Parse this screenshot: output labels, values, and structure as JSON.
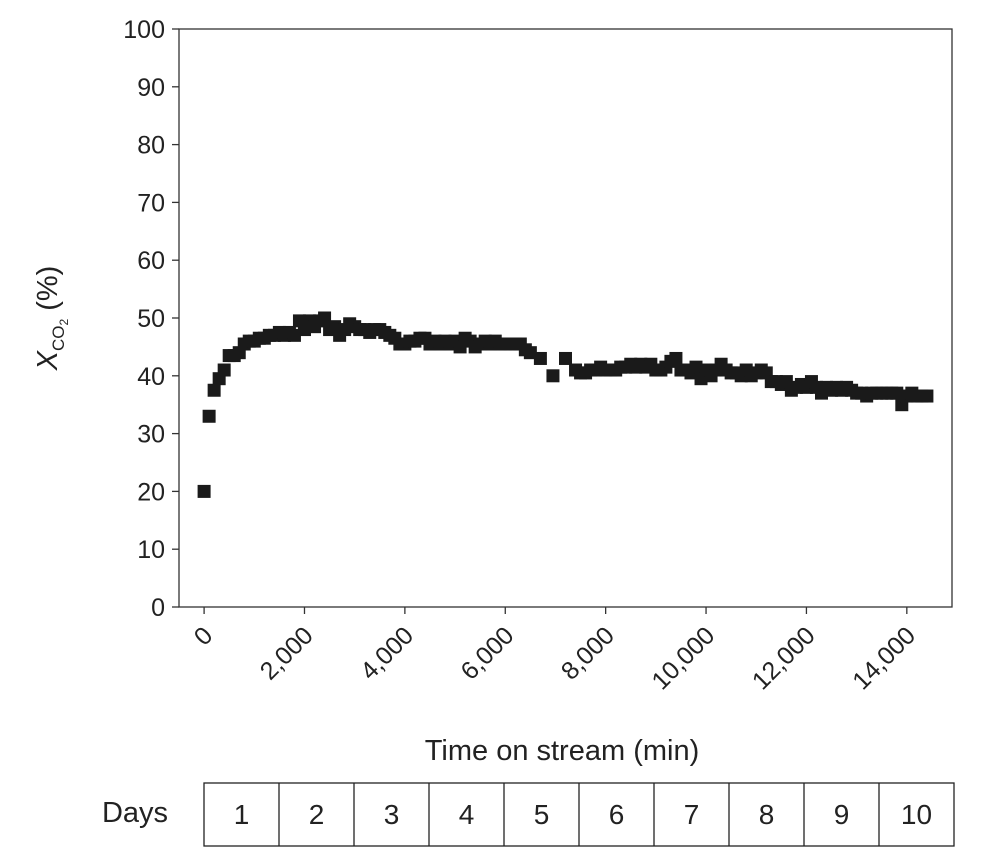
{
  "chart_data": {
    "type": "scatter",
    "xlabel": "Time on stream (min)",
    "ylabel": {
      "symbol": "X",
      "sub": "CO",
      "sub2": "2",
      "unit": "(%)"
    },
    "xlim": [
      -500,
      14900
    ],
    "ylim": [
      0,
      100
    ],
    "xticks": [
      0,
      2000,
      4000,
      6000,
      8000,
      10000,
      12000,
      14000
    ],
    "xtick_labels": [
      "0",
      "2,000",
      "4,000",
      "6,000",
      "8,000",
      "10,000",
      "12,000",
      "14,000"
    ],
    "yticks": [
      0,
      10,
      20,
      30,
      40,
      50,
      60,
      70,
      80,
      90,
      100
    ],
    "ytick_labels": [
      "0",
      "10",
      "20",
      "30",
      "40",
      "50",
      "60",
      "70",
      "80",
      "90",
      "100"
    ],
    "grid": false,
    "marker": "square",
    "color": "#1a1a1a",
    "points": [
      [
        0,
        20
      ],
      [
        100,
        33
      ],
      [
        200,
        37.5
      ],
      [
        300,
        39.5
      ],
      [
        400,
        41
      ],
      [
        500,
        43.5
      ],
      [
        600,
        43.5
      ],
      [
        700,
        44
      ],
      [
        800,
        45.5
      ],
      [
        900,
        46
      ],
      [
        1000,
        46
      ],
      [
        1100,
        46.5
      ],
      [
        1200,
        46.5
      ],
      [
        1300,
        47
      ],
      [
        1400,
        47
      ],
      [
        1500,
        47.5
      ],
      [
        1600,
        47
      ],
      [
        1700,
        47.5
      ],
      [
        1800,
        47
      ],
      [
        1900,
        49.5
      ],
      [
        2000,
        48
      ],
      [
        2100,
        49.5
      ],
      [
        2200,
        48.5
      ],
      [
        2300,
        49.5
      ],
      [
        2400,
        50
      ],
      [
        2500,
        48
      ],
      [
        2600,
        48.5
      ],
      [
        2700,
        47
      ],
      [
        2800,
        48
      ],
      [
        2900,
        49
      ],
      [
        3000,
        48.5
      ],
      [
        3100,
        48
      ],
      [
        3200,
        48
      ],
      [
        3300,
        47.5
      ],
      [
        3400,
        48
      ],
      [
        3500,
        48
      ],
      [
        3600,
        47.5
      ],
      [
        3700,
        47
      ],
      [
        3800,
        46.5
      ],
      [
        3900,
        45.5
      ],
      [
        4000,
        45.5
      ],
      [
        4100,
        46
      ],
      [
        4200,
        46
      ],
      [
        4300,
        46.5
      ],
      [
        4400,
        46.5
      ],
      [
        4500,
        45.5
      ],
      [
        4600,
        46
      ],
      [
        4700,
        45.5
      ],
      [
        4800,
        46
      ],
      [
        4900,
        45.5
      ],
      [
        5000,
        46
      ],
      [
        5100,
        45
      ],
      [
        5200,
        46.5
      ],
      [
        5300,
        46
      ],
      [
        5400,
        45
      ],
      [
        5500,
        45.5
      ],
      [
        5600,
        46
      ],
      [
        5700,
        45.5
      ],
      [
        5800,
        46
      ],
      [
        5900,
        45.5
      ],
      [
        6000,
        45.5
      ],
      [
        6100,
        45.5
      ],
      [
        6200,
        45.5
      ],
      [
        6300,
        45.5
      ],
      [
        6400,
        44.5
      ],
      [
        6500,
        44
      ],
      [
        6700,
        43
      ],
      [
        6950,
        40
      ],
      [
        7200,
        43
      ],
      [
        7400,
        41
      ],
      [
        7500,
        40.5
      ],
      [
        7600,
        40.5
      ],
      [
        7700,
        41
      ],
      [
        7800,
        41
      ],
      [
        7900,
        41.5
      ],
      [
        8000,
        41
      ],
      [
        8100,
        41
      ],
      [
        8200,
        41
      ],
      [
        8300,
        41.5
      ],
      [
        8400,
        41.5
      ],
      [
        8500,
        42
      ],
      [
        8600,
        41.5
      ],
      [
        8700,
        42
      ],
      [
        8800,
        41.5
      ],
      [
        8900,
        42
      ],
      [
        9000,
        41
      ],
      [
        9100,
        41
      ],
      [
        9200,
        41.5
      ],
      [
        9300,
        42.5
      ],
      [
        9400,
        43
      ],
      [
        9500,
        41
      ],
      [
        9600,
        41
      ],
      [
        9700,
        40.5
      ],
      [
        9800,
        41.5
      ],
      [
        9900,
        39.5
      ],
      [
        10000,
        41
      ],
      [
        10100,
        40
      ],
      [
        10200,
        41
      ],
      [
        10300,
        42
      ],
      [
        10400,
        41
      ],
      [
        10500,
        40.5
      ],
      [
        10600,
        40.5
      ],
      [
        10700,
        40
      ],
      [
        10800,
        41
      ],
      [
        10900,
        40
      ],
      [
        11000,
        40.5
      ],
      [
        11100,
        41
      ],
      [
        11200,
        40.5
      ],
      [
        11300,
        39
      ],
      [
        11400,
        39
      ],
      [
        11500,
        38.5
      ],
      [
        11600,
        39
      ],
      [
        11700,
        37.5
      ],
      [
        11800,
        38
      ],
      [
        11900,
        38.5
      ],
      [
        12000,
        38
      ],
      [
        12100,
        39
      ],
      [
        12200,
        38
      ],
      [
        12300,
        37
      ],
      [
        12400,
        38
      ],
      [
        12500,
        37.5
      ],
      [
        12600,
        38
      ],
      [
        12700,
        37.5
      ],
      [
        12800,
        38
      ],
      [
        12900,
        37.5
      ],
      [
        13000,
        37
      ],
      [
        13100,
        37
      ],
      [
        13200,
        36.5
      ],
      [
        13300,
        37
      ],
      [
        13400,
        37
      ],
      [
        13500,
        37
      ],
      [
        13600,
        37
      ],
      [
        13700,
        37
      ],
      [
        13800,
        37
      ],
      [
        13900,
        35
      ],
      [
        14000,
        36.5
      ],
      [
        14100,
        37
      ],
      [
        14200,
        36.5
      ],
      [
        14300,
        36.5
      ],
      [
        14400,
        36.5
      ]
    ]
  },
  "days": {
    "title": "Days",
    "labels": [
      "1",
      "2",
      "3",
      "4",
      "5",
      "6",
      "7",
      "8",
      "9",
      "10"
    ]
  }
}
